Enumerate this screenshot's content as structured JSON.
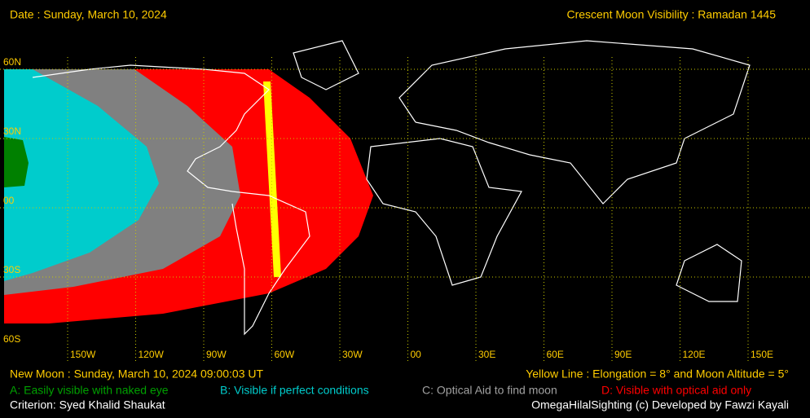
{
  "header": {
    "date": "Date : Sunday, March 10, 2024",
    "title": "Crescent Moon Visibility : Ramadan  1445"
  },
  "map": {
    "lat_labels": [
      "60N",
      "30N",
      "00",
      "30S",
      "60S"
    ],
    "lon_labels": [
      "150W",
      "120W",
      "90W",
      "60W",
      "30W",
      "00",
      "30E",
      "60E",
      "90E",
      "120E",
      "150E"
    ]
  },
  "footer": {
    "new_moon": "New Moon : Sunday, March 10, 2024  09:00:03  UT",
    "yellow_line": "Yellow Line : Elongation = 8° and Moon Altitude = 5°",
    "legend_a": "A: Easily visible with naked eye",
    "legend_b": "B: Visible if perfect conditions",
    "legend_c": "C: Optical Aid to find moon",
    "legend_d": "D: Visible with optical aid only",
    "criterion": "Criterion: Syed Khalid Shaukat",
    "credit": "OmegaHilalSighting  (c)  Developed by Fawzi Kayali"
  }
}
